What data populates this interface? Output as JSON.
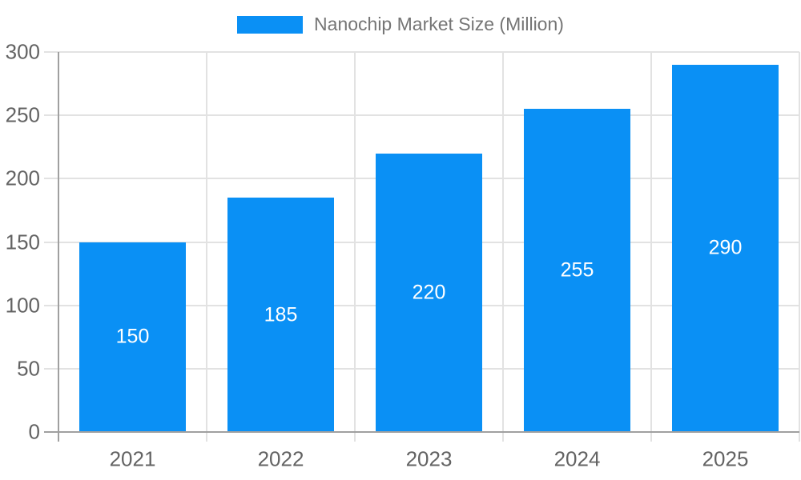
{
  "chart_data": {
    "type": "bar",
    "title": "Nanochip Market Size (Million)",
    "legend": {
      "label": "Nanochip Market Size (Million)",
      "position": "top-center"
    },
    "categories": [
      "2021",
      "2022",
      "2023",
      "2024",
      "2025"
    ],
    "values": [
      150,
      185,
      220,
      255,
      290
    ],
    "bar_labels": [
      "150",
      "185",
      "220",
      "255",
      "290"
    ],
    "xlabel": "",
    "ylabel": "",
    "ylim": [
      0,
      300
    ],
    "yticks": [
      0,
      50,
      100,
      150,
      200,
      250,
      300
    ],
    "grid": true,
    "colors": {
      "bar": "#0A90F5",
      "grid": "#e2e2e2",
      "axis": "#a0a0a0",
      "axis_label": "#636363",
      "legend_text": "#757575",
      "bar_label_text": "#ffffff",
      "background": "#ffffff"
    }
  }
}
